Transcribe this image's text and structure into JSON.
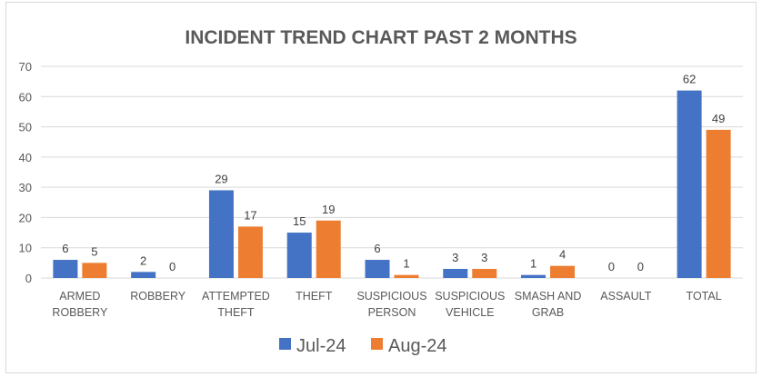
{
  "chart_data": {
    "type": "bar",
    "title": "INCIDENT TREND CHART PAST 2 MONTHS",
    "xlabel": "",
    "ylabel": "",
    "categories": [
      [
        "ARMED",
        "ROBBERY"
      ],
      [
        "ROBBERY"
      ],
      [
        "ATTEMPTED",
        "THEFT"
      ],
      [
        "THEFT"
      ],
      [
        "SUSPICIOUS",
        "PERSON"
      ],
      [
        "SUSPICIOUS",
        "VEHICLE"
      ],
      [
        "SMASH AND",
        "GRAB"
      ],
      [
        "ASSAULT"
      ],
      [
        "TOTAL"
      ]
    ],
    "series": [
      {
        "name": "Jul-24",
        "color": "#4472c4",
        "values": [
          6,
          2,
          29,
          15,
          6,
          3,
          1,
          0,
          62
        ]
      },
      {
        "name": "Aug-24",
        "color": "#ed7d31",
        "values": [
          5,
          0,
          17,
          19,
          1,
          3,
          4,
          0,
          49
        ]
      }
    ],
    "ylim": [
      0,
      70
    ],
    "yticks": [
      0,
      10,
      20,
      30,
      40,
      50,
      60,
      70
    ],
    "grid": true,
    "data_labels": true,
    "legend": "bottom"
  }
}
